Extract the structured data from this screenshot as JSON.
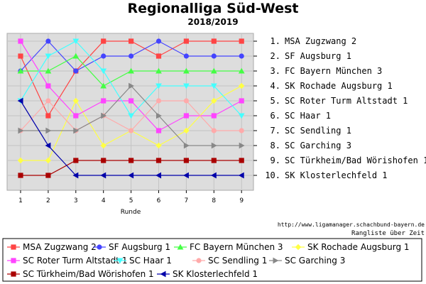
{
  "title": "Regionalliga Süd-West",
  "subtitle": "2018/2019",
  "source_url": "http://www.ligamanager.schachbund-bayern.de",
  "caption": "Rangliste über Zeit",
  "chart_data": {
    "type": "line",
    "title": "Regionalliga Süd-West",
    "subtitle": "2018/2019",
    "xlabel": "Runde",
    "ylabel": "",
    "x": [
      1,
      2,
      3,
      4,
      5,
      6,
      7,
      8,
      9
    ],
    "ylim": [
      1,
      10
    ],
    "y_inverted": true,
    "grid": true,
    "legend_position": "bottom",
    "final_ranking": [
      "1. MSA Zugzwang 2",
      "2. SF Augsburg 1",
      "3. FC Bayern München 3",
      "4. SK Rochade Augsburg 1",
      "5. SC Roter Turm Altstadt 1",
      "6. SC Haar 1",
      "7. SC Sendling 1",
      "8. SC Garching 3",
      "9. SC Türkheim/Bad Wörishofen 1",
      "10. SK Klosterlechfeld 1"
    ],
    "series": [
      {
        "name": "MSA Zugzwang 2",
        "color": "#ff4444",
        "marker": "square",
        "values": [
          2,
          6,
          3,
          1,
          1,
          2,
          1,
          1,
          1
        ]
      },
      {
        "name": "SF Augsburg 1",
        "color": "#4444ff",
        "marker": "circle",
        "values": [
          3,
          1,
          3,
          2,
          2,
          1,
          2,
          2,
          2
        ]
      },
      {
        "name": "FC Bayern München 3",
        "color": "#44ff44",
        "marker": "triangle-up",
        "values": [
          3,
          3,
          2,
          4,
          3,
          3,
          3,
          3,
          3
        ]
      },
      {
        "name": "SK Rochade Augsburg 1",
        "color": "#ffff44",
        "marker": "diamond",
        "values": [
          9,
          9,
          5,
          8,
          7,
          8,
          7,
          5,
          4
        ]
      },
      {
        "name": "SC Roter Turm Altstadt 1",
        "color": "#ff44ff",
        "marker": "square",
        "values": [
          1,
          4,
          6,
          5,
          5,
          7,
          6,
          6,
          5
        ]
      },
      {
        "name": "SC Haar 1",
        "color": "#44ffff",
        "marker": "triangle-down",
        "values": [
          5,
          2,
          1,
          3,
          6,
          4,
          4,
          4,
          6
        ]
      },
      {
        "name": "SC Sendling 1",
        "color": "#ffaaaa",
        "marker": "circle",
        "values": [
          7,
          5,
          7,
          6,
          7,
          5,
          5,
          7,
          7
        ]
      },
      {
        "name": "SC Garching 3",
        "color": "#888888",
        "marker": "triangle-right",
        "values": [
          7,
          7,
          7,
          6,
          4,
          6,
          8,
          8,
          8
        ]
      },
      {
        "name": "SC Türkheim/Bad Wörishofen 1",
        "color": "#aa0000",
        "marker": "square",
        "values": [
          10,
          10,
          9,
          9,
          9,
          9,
          9,
          9,
          9
        ]
      },
      {
        "name": "SK Klosterlechfeld 1",
        "color": "#0000aa",
        "marker": "triangle-left",
        "values": [
          5,
          8,
          10,
          10,
          10,
          10,
          10,
          10,
          10
        ]
      }
    ]
  }
}
